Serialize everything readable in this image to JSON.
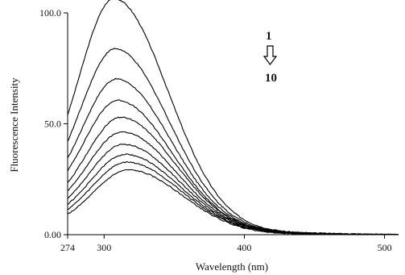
{
  "chart_data": {
    "type": "line",
    "xlabel": "Wavelength (nm)",
    "ylabel": "Fluorescence Intensity",
    "xlim": [
      274,
      510
    ],
    "ylim": [
      0,
      100
    ],
    "x_ticks": [
      274,
      300,
      400,
      500
    ],
    "x_tick_labels": [
      "274",
      "300",
      "400",
      "500"
    ],
    "y_ticks": [
      0,
      50,
      100
    ],
    "y_tick_labels": [
      "0.00",
      "50.0",
      "100.0"
    ],
    "grid": false,
    "line_color": "#000000",
    "annotation": {
      "top": "1",
      "bottom": "10",
      "arrow": "down"
    },
    "series": [
      {
        "peak": 100,
        "peak_x": 308,
        "base_start": 11.5
      },
      {
        "peak": 78,
        "peak_x": 309,
        "base_start": 10.5
      },
      {
        "peak": 65,
        "peak_x": 310,
        "base_start": 9.5
      },
      {
        "peak": 56,
        "peak_x": 311,
        "base_start": 8.5
      },
      {
        "peak": 49,
        "peak_x": 313,
        "base_start": 7.5
      },
      {
        "peak": 43,
        "peak_x": 314,
        "base_start": 6.5
      },
      {
        "peak": 38,
        "peak_x": 315,
        "base_start": 5.5
      },
      {
        "peak": 34,
        "peak_x": 316,
        "base_start": 4.5
      },
      {
        "peak": 31,
        "peak_x": 317,
        "base_start": 3.5
      },
      {
        "peak": 28,
        "peak_x": 318,
        "base_start": 2.5
      }
    ]
  }
}
